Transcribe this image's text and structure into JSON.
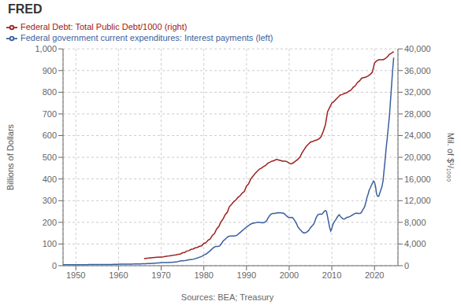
{
  "chart_data": {
    "type": "line",
    "title": "FRED",
    "ylabel": "Billions of Dollars",
    "y2label": "Mil. of $¹/₁₀₀₀",
    "annotations": [
      "Sources: BEA; Treasury"
    ],
    "legend": "upper left",
    "grid": true,
    "xlim": [
      1947.0,
      2025.5
    ],
    "xticks": [
      1950,
      1960,
      1970,
      1980,
      1990,
      2000,
      2010,
      2020
    ],
    "ylim": [
      0,
      1000
    ],
    "yticks": [
      0,
      100,
      200,
      300,
      400,
      500,
      600,
      700,
      800,
      900,
      {
        "value": 1000,
        "label": "1,000"
      }
    ],
    "y2lim": [
      0,
      40000
    ],
    "y2ticks": [
      0,
      {
        "value": 4000,
        "label": "4,000"
      },
      {
        "value": 8000,
        "label": "8,000"
      },
      {
        "value": 12000,
        "label": "12,000"
      },
      {
        "value": 16000,
        "label": "16,000"
      },
      {
        "value": 20000,
        "label": "20,000"
      },
      {
        "value": 24000,
        "label": "24,000"
      },
      {
        "value": 28000,
        "label": "28,000"
      },
      {
        "value": 32000,
        "label": "32,000"
      },
      {
        "value": 36000,
        "label": "36,000"
      },
      {
        "value": 40000,
        "label": "40,000"
      }
    ],
    "series": [
      {
        "name": "Federal government current expenditures: Interest payments (left)",
        "color": "#3a5f9e",
        "axis": "y",
        "x": [
          1947.0,
          1947.25,
          1947.5,
          1947.75,
          1948.0,
          1948.25,
          1948.5,
          1948.75,
          1949.0,
          1949.25,
          1949.5,
          1949.75,
          1950.0,
          1950.25,
          1950.5,
          1950.75,
          1951.0,
          1951.25,
          1951.5,
          1951.75,
          1952.0,
          1952.25,
          1952.5,
          1952.75,
          1953.0,
          1953.25,
          1953.5,
          1953.75,
          1954.0,
          1954.25,
          1954.5,
          1954.75,
          1955.0,
          1955.25,
          1955.5,
          1955.75,
          1956.0,
          1956.25,
          1956.5,
          1956.75,
          1957.0,
          1957.25,
          1957.5,
          1957.75,
          1958.0,
          1958.25,
          1958.5,
          1958.75,
          1959.0,
          1959.25,
          1959.5,
          1959.75,
          1960.0,
          1960.25,
          1960.5,
          1960.75,
          1961.0,
          1961.25,
          1961.5,
          1961.75,
          1962.0,
          1962.25,
          1962.5,
          1962.75,
          1963.0,
          1963.25,
          1963.5,
          1963.75,
          1964.0,
          1964.25,
          1964.5,
          1964.75,
          1965.0,
          1965.25,
          1965.5,
          1965.75,
          1966.0,
          1966.25,
          1966.5,
          1966.75,
          1967.0,
          1967.25,
          1967.5,
          1967.75,
          1968.0,
          1968.25,
          1968.5,
          1968.75,
          1969.0,
          1969.25,
          1969.5,
          1969.75,
          1970.0,
          1970.25,
          1970.5,
          1970.75,
          1971.0,
          1971.25,
          1971.5,
          1971.75,
          1972.0,
          1972.25,
          1972.5,
          1972.75,
          1973.0,
          1973.25,
          1973.5,
          1973.75,
          1974.0,
          1974.25,
          1974.5,
          1974.75,
          1975.0,
          1975.25,
          1975.5,
          1975.75,
          1976.0,
          1976.25,
          1976.5,
          1976.75,
          1977.0,
          1977.25,
          1977.5,
          1977.75,
          1978.0,
          1978.25,
          1978.5,
          1978.75,
          1979.0,
          1979.25,
          1979.5,
          1979.75,
          1980.0,
          1980.25,
          1980.5,
          1980.75,
          1981.0,
          1981.25,
          1981.5,
          1981.75,
          1982.0,
          1982.25,
          1982.5,
          1982.75,
          1983.0,
          1983.25,
          1983.5,
          1983.75,
          1984.0,
          1984.25,
          1984.5,
          1984.75,
          1985.0,
          1985.25,
          1985.5,
          1985.75,
          1986.0,
          1986.25,
          1986.5,
          1986.75,
          1987.0,
          1987.25,
          1987.5,
          1987.75,
          1988.0,
          1988.25,
          1988.5,
          1988.75,
          1989.0,
          1989.25,
          1989.5,
          1989.75,
          1990.0,
          1990.25,
          1990.5,
          1990.75,
          1991.0,
          1991.25,
          1991.5,
          1991.75,
          1992.0,
          1992.25,
          1992.5,
          1992.75,
          1993.0,
          1993.25,
          1993.5,
          1993.75,
          1994.0,
          1994.25,
          1994.5,
          1994.75,
          1995.0,
          1995.25,
          1995.5,
          1995.75,
          1996.0,
          1996.25,
          1996.5,
          1996.75,
          1997.0,
          1997.25,
          1997.5,
          1997.75,
          1998.0,
          1998.25,
          1998.5,
          1998.75,
          1999.0,
          1999.25,
          1999.5,
          1999.75,
          2000.0,
          2000.25,
          2000.5,
          2000.75,
          2001.0,
          2001.25,
          2001.5,
          2001.75,
          2002.0,
          2002.25,
          2002.5,
          2002.75,
          2003.0,
          2003.25,
          2003.5,
          2003.75,
          2004.0,
          2004.25,
          2004.5,
          2004.75,
          2005.0,
          2005.25,
          2005.5,
          2005.75,
          2006.0,
          2006.25,
          2006.5,
          2006.75,
          2007.0,
          2007.25,
          2007.5,
          2007.75,
          2008.0,
          2008.25,
          2008.5,
          2008.75,
          2009.0,
          2009.25,
          2009.5,
          2009.75,
          2010.0,
          2010.25,
          2010.5,
          2010.75,
          2011.0,
          2011.25,
          2011.5,
          2011.75,
          2012.0,
          2012.25,
          2012.5,
          2012.75,
          2013.0,
          2013.25,
          2013.5,
          2013.75,
          2014.0,
          2014.25,
          2014.5,
          2014.75,
          2015.0,
          2015.25,
          2015.5,
          2015.75,
          2016.0,
          2016.25,
          2016.5,
          2016.75,
          2017.0,
          2017.25,
          2017.5,
          2017.75,
          2018.0,
          2018.25,
          2018.5,
          2018.75,
          2019.0,
          2019.25,
          2019.5,
          2019.75,
          2020.0,
          2020.25,
          2020.5,
          2020.75,
          2021.0,
          2021.25,
          2021.5,
          2021.75,
          2022.0,
          2022.25,
          2022.5,
          2022.75,
          2023.0,
          2023.25,
          2023.5,
          2023.75,
          2024.0,
          2024.25,
          2024.5
        ],
        "values": [
          4.2,
          4.3,
          4.3,
          4.4,
          4.4,
          4.4,
          4.5,
          4.5,
          4.5,
          4.5,
          4.6,
          4.6,
          4.7,
          4.7,
          4.8,
          4.8,
          4.7,
          4.6,
          4.6,
          4.6,
          4.7,
          4.7,
          4.8,
          4.8,
          5.0,
          5.1,
          5.2,
          5.2,
          5.1,
          5.1,
          5.1,
          5.1,
          5.1,
          5.2,
          5.2,
          5.3,
          5.3,
          5.3,
          5.4,
          5.4,
          5.5,
          5.5,
          5.6,
          5.6,
          5.7,
          5.7,
          5.8,
          5.9,
          6.0,
          6.1,
          6.3,
          6.4,
          6.7,
          6.8,
          6.9,
          7.0,
          6.9,
          6.9,
          7.0,
          7.0,
          7.1,
          7.1,
          7.2,
          7.3,
          7.5,
          7.6,
          7.8,
          7.9,
          8.0,
          8.1,
          8.2,
          8.3,
          8.4,
          8.5,
          8.7,
          8.8,
          9.0,
          9.2,
          9.5,
          9.7,
          9.9,
          10.1,
          10.4,
          10.7,
          11.0,
          11.3,
          11.7,
          12.1,
          12.5,
          12.8,
          13.1,
          13.5,
          14.0,
          14.2,
          14.5,
          14.8,
          14.7,
          14.7,
          14.8,
          14.9,
          15.1,
          15.3,
          15.6,
          15.9,
          16.5,
          17.0,
          17.5,
          18.2,
          19.5,
          20.5,
          21.5,
          22.5,
          22.5,
          22.8,
          23.3,
          24.0,
          25.0,
          26.0,
          27.0,
          27.8,
          28.5,
          29.2,
          30.1,
          31.2,
          32.5,
          34.0,
          35.5,
          37.5,
          39.5,
          41.0,
          43.0,
          45.5,
          49.0,
          51.0,
          53.5,
          56.5,
          61.0,
          65.0,
          69.5,
          74.0,
          79.0,
          82.5,
          85.5,
          88.5,
          88.5,
          89.0,
          90.0,
          92.0,
          98.0,
          105.0,
          113.0,
          118.0,
          122.0,
          127.0,
          131.0,
          135.0,
          136.0,
          136.5,
          136.5,
          136.5,
          137.0,
          138.0,
          139.0,
          140.5,
          144.0,
          149.0,
          153.0,
          157.0,
          162.0,
          166.0,
          170.0,
          174.0,
          178.0,
          182.0,
          185.0,
          189.0,
          192.0,
          194.0,
          195.5,
          196.5,
          197.5,
          199.0,
          200.0,
          200.5,
          200.0,
          199.0,
          198.5,
          198.0,
          198.5,
          200.0,
          203.0,
          208.0,
          218.0,
          226.0,
          233.0,
          237.0,
          240.0,
          241.5,
          241.5,
          241.0,
          243.0,
          244.0,
          244.5,
          244.0,
          243.5,
          243.0,
          242.5,
          241.5,
          237.0,
          232.0,
          228.0,
          224.0,
          222.5,
          222.5,
          223.0,
          222.0,
          217.0,
          210.0,
          202.0,
          193.0,
          181.0,
          174.0,
          168.0,
          163.0,
          157.0,
          153.0,
          151.0,
          152.0,
          153.0,
          157.0,
          161.0,
          167.0,
          175.0,
          181.0,
          186.0,
          192.0,
          204.0,
          218.0,
          228.0,
          235.0,
          237.0,
          238.0,
          237.5,
          238.0,
          245.0,
          251.0,
          255.0,
          250.0,
          226.0,
          200.0,
          175.0,
          160.0,
          172.0,
          190.0,
          200.0,
          207.0,
          214.0,
          223.0,
          230.0,
          235.0,
          228.0,
          222.0,
          218.0,
          215.0,
          216.0,
          219.0,
          222.0,
          224.0,
          225.0,
          227.0,
          230.0,
          233.0,
          236.0,
          239.0,
          241.0,
          243.0,
          241.5,
          241.0,
          241.5,
          242.0,
          248.0,
          258.0,
          265.0,
          275.0,
          295.0,
          315.0,
          330.0,
          348.0,
          358.0,
          370.0,
          379.0,
          390.0,
          385.0,
          365.0,
          330.0,
          320.0,
          320.0,
          335.0,
          350.0,
          365.0,
          390.0,
          440.0,
          490.0,
          545.0,
          590.0,
          640.0,
          690.0,
          760.0,
          830.0,
          900.0,
          960.0
        ]
      },
      {
        "name": "Federal Debt: Total Public Debt/1000 (right)",
        "color": "#9e2020",
        "axis": "y2",
        "x": [
          1966.0,
          1967.0,
          1968.0,
          1969.0,
          1970.0,
          1970.5,
          1971.0,
          1971.5,
          1972.0,
          1972.5,
          1973.0,
          1973.5,
          1974.0,
          1974.5,
          1975.0,
          1975.5,
          1976.0,
          1976.5,
          1977.0,
          1977.5,
          1978.0,
          1978.5,
          1979.0,
          1979.5,
          1980.0,
          1980.5,
          1981.0,
          1981.5,
          1982.0,
          1982.5,
          1983.0,
          1983.5,
          1984.0,
          1984.5,
          1985.0,
          1985.5,
          1986.0,
          1986.5,
          1987.0,
          1987.5,
          1988.0,
          1988.5,
          1989.0,
          1989.5,
          1990.0,
          1990.5,
          1991.0,
          1991.5,
          1992.0,
          1992.5,
          1993.0,
          1993.5,
          1994.0,
          1994.5,
          1995.0,
          1995.5,
          1996.0,
          1996.5,
          1997.0,
          1997.5,
          1998.0,
          1998.5,
          1999.0,
          1999.5,
          2000.0,
          2000.5,
          2001.0,
          2001.5,
          2002.0,
          2002.5,
          2003.0,
          2003.5,
          2004.0,
          2004.5,
          2005.0,
          2005.5,
          2006.0,
          2006.5,
          2007.0,
          2007.5,
          2008.0,
          2008.5,
          2009.0,
          2009.5,
          2010.0,
          2010.5,
          2011.0,
          2011.5,
          2012.0,
          2012.5,
          2013.0,
          2013.5,
          2014.0,
          2014.5,
          2015.0,
          2015.5,
          2016.0,
          2016.5,
          2017.0,
          2017.5,
          2018.0,
          2018.5,
          2019.0,
          2019.5,
          2020.0,
          2020.5,
          2021.0,
          2021.5,
          2022.0,
          2022.5,
          2023.0,
          2023.5,
          2024.0,
          2024.5
        ],
        "values": [
          1320,
          1400,
          1500,
          1550,
          1610,
          1640,
          1720,
          1760,
          1830,
          1870,
          1970,
          2010,
          2110,
          2150,
          2380,
          2430,
          2700,
          2770,
          3000,
          3080,
          3300,
          3370,
          3590,
          3650,
          4100,
          4250,
          4700,
          4950,
          5600,
          5950,
          6800,
          7200,
          8050,
          8600,
          9400,
          9850,
          10900,
          11300,
          11800,
          12100,
          12600,
          12900,
          13400,
          13700,
          14700,
          15100,
          16000,
          16500,
          17000,
          17400,
          17800,
          18000,
          18300,
          18500,
          18900,
          19100,
          19300,
          19400,
          19600,
          19500,
          19400,
          19300,
          19300,
          19200,
          18900,
          18800,
          19000,
          19300,
          19600,
          20000,
          20800,
          21400,
          22000,
          22400,
          22800,
          22900,
          23100,
          23200,
          23400,
          23800,
          24800,
          26000,
          28400,
          29200,
          30000,
          30300,
          30700,
          31100,
          31500,
          31600,
          31800,
          31900,
          32200,
          32400,
          32900,
          33200,
          33800,
          34100,
          34600,
          34700,
          34800,
          35000,
          35300,
          35700,
          37400,
          37800,
          38000,
          38000,
          38000,
          38200,
          38500,
          39000,
          39200,
          39500
        ]
      }
    ]
  }
}
